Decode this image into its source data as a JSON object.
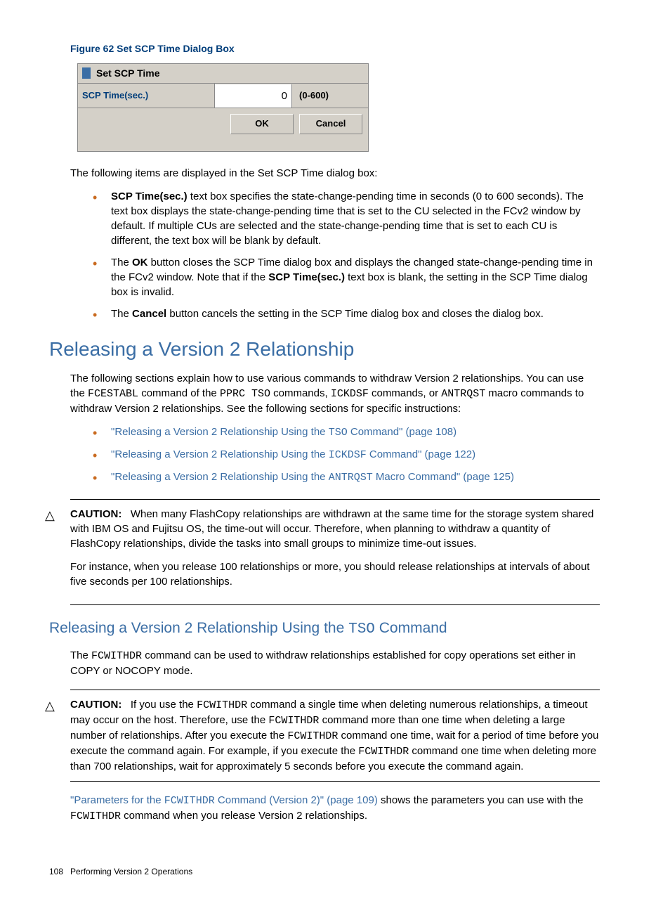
{
  "figure": {
    "caption": "Figure 62 Set SCP Time Dialog Box",
    "dialogTitle": "Set SCP Time",
    "fieldLabel": "SCP Time(sec.)",
    "fieldValue": "0",
    "fieldRange": "(0-600)",
    "okLabel": "OK",
    "cancelLabel": "Cancel"
  },
  "introLine": "The following items are displayed in the Set SCP Time dialog box:",
  "bullets1": {
    "b1_bold": "SCP Time(sec.)",
    "b1_rest": " text box specifies the state-change-pending time in seconds (0 to 600 seconds). The text box displays the state-change-pending time that is set to the CU selected in the FCv2 window by default. If multiple CUs are selected and the state-change-pending time that is set to each CU is different, the text box will be blank by default.",
    "b2_pre": "The ",
    "b2_bold": "OK",
    "b2_mid": " button closes the SCP Time dialog box and displays the changed state-change-pending time in the FCv2 window. Note that if the ",
    "b2_bold2": "SCP Time(sec.)",
    "b2_end": " text box is blank, the setting in the SCP Time dialog box is invalid.",
    "b3_pre": "The ",
    "b3_bold": "Cancel",
    "b3_end": " button cancels the setting in the SCP Time dialog box and closes the dialog box."
  },
  "heading1": "Releasing a Version 2 Relationship",
  "para1_a": "The following sections explain how to use various commands to withdraw Version 2 relationships. You can use the ",
  "para1_m1": "FCESTABL",
  "para1_b": " command of the ",
  "para1_m2": "PPRC TSO",
  "para1_c": " commands, ",
  "para1_m3": "ICKDSF",
  "para1_d": " commands, or ",
  "para1_m4": "ANTRQST",
  "para1_e": " macro commands to withdraw Version 2 relationships. See the following sections for specific instructions:",
  "links": {
    "l1_a": "\"Releasing a Version 2 Relationship Using the ",
    "l1_m": "TSO",
    "l1_b": " Command\" (page 108)",
    "l2_a": "\"Releasing a Version 2 Relationship Using the ",
    "l2_m": "ICKDSF",
    "l2_b": " Command\" (page 122)",
    "l3_a": "\"Releasing a Version 2 Relationship Using the ",
    "l3_m": "ANTRQST",
    "l3_b": " Macro Command\" (page 125)"
  },
  "caution1": {
    "label": "CAUTION:",
    "text1": "When many FlashCopy relationships are withdrawn at the same time for the storage system shared with IBM OS and Fujitsu OS, the time-out will occur. Therefore, when planning to withdraw a quantity of FlashCopy relationships, divide the tasks into small groups to minimize time-out issues.",
    "text2": "For instance, when you release 100 relationships or more, you should release relationships at intervals of about five seconds per 100 relationships."
  },
  "heading2_a": "Releasing a Version 2 Relationship Using the ",
  "heading2_m": "TSO",
  "heading2_b": " Command",
  "para2_a": "The ",
  "para2_m": "FCWITHDR",
  "para2_b": " command can be used to withdraw relationships established for copy operations set either in COPY or NOCOPY mode.",
  "caution2": {
    "label": "CAUTION:",
    "t_a": "If you use the ",
    "t_m1": "FCWITHDR",
    "t_b": " command a single time when deleting numerous relationships, a timeout may occur on the host. Therefore, use the ",
    "t_m2": "FCWITHDR",
    "t_c": " command more than one time when deleting a large number of relationships. After you execute the ",
    "t_m3": "FCWITHDR",
    "t_d": " command one time, wait for a period of time before you execute the command again. For example, if you execute the ",
    "t_m4": "FCWITHDR",
    "t_e": " command one time when deleting more than 700 relationships, wait for approximately 5 seconds before you execute the command again."
  },
  "lastPara": {
    "link_a": "\"Parameters for the ",
    "link_m": "FCWITHDR",
    "link_b": " Command (Version 2)\" (page 109)",
    "rest_a": " shows the parameters you can use with the ",
    "rest_m": "FCWITHDR",
    "rest_b": " command when you release Version 2 relationships."
  },
  "footer": {
    "pageNum": "108",
    "label": "Performing Version 2 Operations"
  },
  "colors": {
    "linkBlue": "#3b6ea5",
    "bulletOrange": "#c96a1f"
  }
}
